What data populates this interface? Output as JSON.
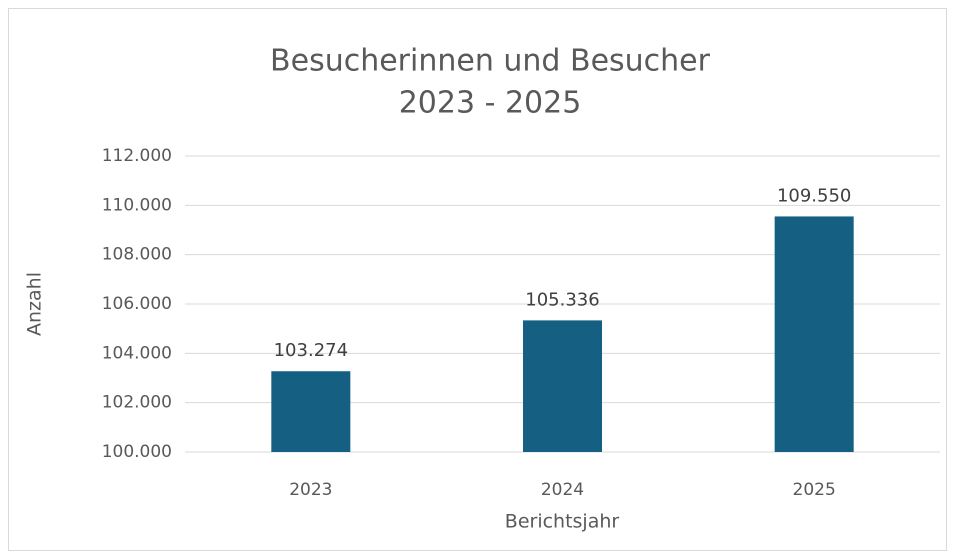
{
  "chart_data": {
    "type": "bar",
    "title": "Besucherinnen und Besucher",
    "subtitle": "2023 - 2025",
    "x_label": "Berichtsjahr",
    "y_label": "Anzahl",
    "categories": [
      "2023",
      "2024",
      "2025"
    ],
    "values": [
      103274,
      105336,
      109550
    ],
    "value_labels": [
      "103.274",
      "105.336",
      "109.550"
    ],
    "color": "#156082",
    "ylim": [
      100000,
      112000
    ],
    "yticks": [
      {
        "value": 100000,
        "label": "100.000"
      },
      {
        "value": 102000,
        "label": "102.000"
      },
      {
        "value": 104000,
        "label": "104.000"
      },
      {
        "value": 106000,
        "label": "106.000"
      },
      {
        "value": 108000,
        "label": "108.000"
      },
      {
        "value": 110000,
        "label": "110.000"
      },
      {
        "value": 112000,
        "label": "112.000"
      }
    ],
    "grid": true
  }
}
